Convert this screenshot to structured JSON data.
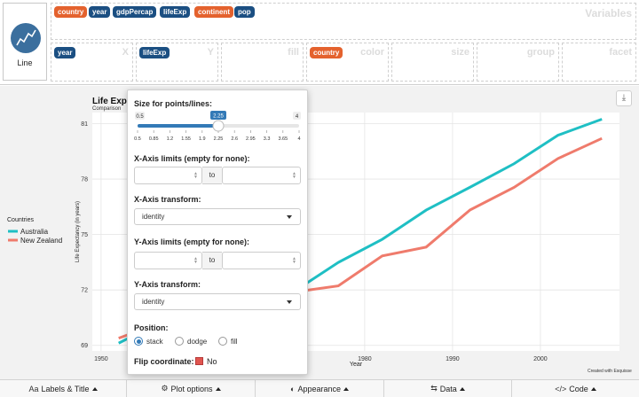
{
  "geom": {
    "label": "Line"
  },
  "variables": {
    "zone_label": "Variables",
    "pills": [
      {
        "label": "country",
        "kind": "cat"
      },
      {
        "label": "year",
        "kind": "num"
      },
      {
        "label": "gdpPercap",
        "kind": "num"
      },
      {
        "label": "lifeExp",
        "kind": "num"
      },
      {
        "label": "continent",
        "kind": "cat"
      },
      {
        "label": "pop",
        "kind": "num"
      }
    ]
  },
  "dropzones": [
    {
      "label": "X",
      "value": "year",
      "kind": "num"
    },
    {
      "label": "Y",
      "value": "lifeExp",
      "kind": "num"
    },
    {
      "label": "fill",
      "value": "",
      "kind": ""
    },
    {
      "label": "color",
      "value": "country",
      "kind": "cat"
    },
    {
      "label": "size",
      "value": "",
      "kind": ""
    },
    {
      "label": "group",
      "value": "",
      "kind": ""
    },
    {
      "label": "facet",
      "value": "",
      "kind": ""
    }
  ],
  "plot": {
    "title": "Life Exp",
    "subtitle": "Comparison",
    "caption": "Created with Esquisse",
    "download_icon": "download-icon"
  },
  "chart_data": {
    "type": "line",
    "x": [
      1952,
      1957,
      1962,
      1967,
      1972,
      1977,
      1982,
      1987,
      1992,
      1997,
      2002,
      2007
    ],
    "series": [
      {
        "name": "Australia",
        "color": "#1fbfc4",
        "values": [
          69.12,
          70.33,
          70.93,
          71.1,
          71.93,
          73.49,
          74.74,
          76.32,
          77.56,
          78.83,
          80.37,
          81.24
        ]
      },
      {
        "name": "New Zealand",
        "color": "#ef7b6c",
        "values": [
          69.39,
          70.26,
          71.24,
          71.52,
          71.89,
          72.22,
          73.84,
          74.32,
          76.33,
          77.55,
          79.11,
          80.2
        ]
      }
    ],
    "xlabel": "Year",
    "ylabel": "Life Expectancy (in years)",
    "xticks": [
      1950,
      1960,
      1970,
      1980,
      1990,
      2000
    ],
    "yticks": [
      69,
      72,
      75,
      78,
      81
    ],
    "xlim": [
      1949,
      2009
    ],
    "ylim": [
      68.7,
      81.6
    ],
    "legend": {
      "title": "Countries",
      "position": "left"
    },
    "grid": true
  },
  "popover": {
    "size_label": "Size for points/lines:",
    "slider": {
      "min": 0.5,
      "max": 4,
      "value": 2.25,
      "min_label": "0.5",
      "max_label": "4",
      "value_label": "2.25",
      "ticks": [
        "0.5",
        "0.85",
        "1.2",
        "1.55",
        "1.9",
        "2.25",
        "2.6",
        "2.95",
        "3.3",
        "3.65",
        "4"
      ]
    },
    "xlim_label": "X-Axis limits (empty for none):",
    "xtrans_label": "X-Axis transform:",
    "xtrans_value": "identity",
    "ylim_label": "Y-Axis limits (empty for none):",
    "ytrans_label": "Y-Axis transform:",
    "ytrans_value": "identity",
    "to_label": "to",
    "position_label": "Position:",
    "positions": [
      "stack",
      "dodge",
      "fill"
    ],
    "position_selected": "stack",
    "flip_label": "Flip coordinate:",
    "flip_value": "No"
  },
  "toolbar": [
    {
      "label": "Labels & Title",
      "icon": "Aa"
    },
    {
      "label": "Plot options",
      "icon": "⚙"
    },
    {
      "label": "Appearance",
      "icon": "◐"
    },
    {
      "label": "Data",
      "icon": "⇆"
    },
    {
      "label": "Code",
      "icon": "</>"
    }
  ]
}
